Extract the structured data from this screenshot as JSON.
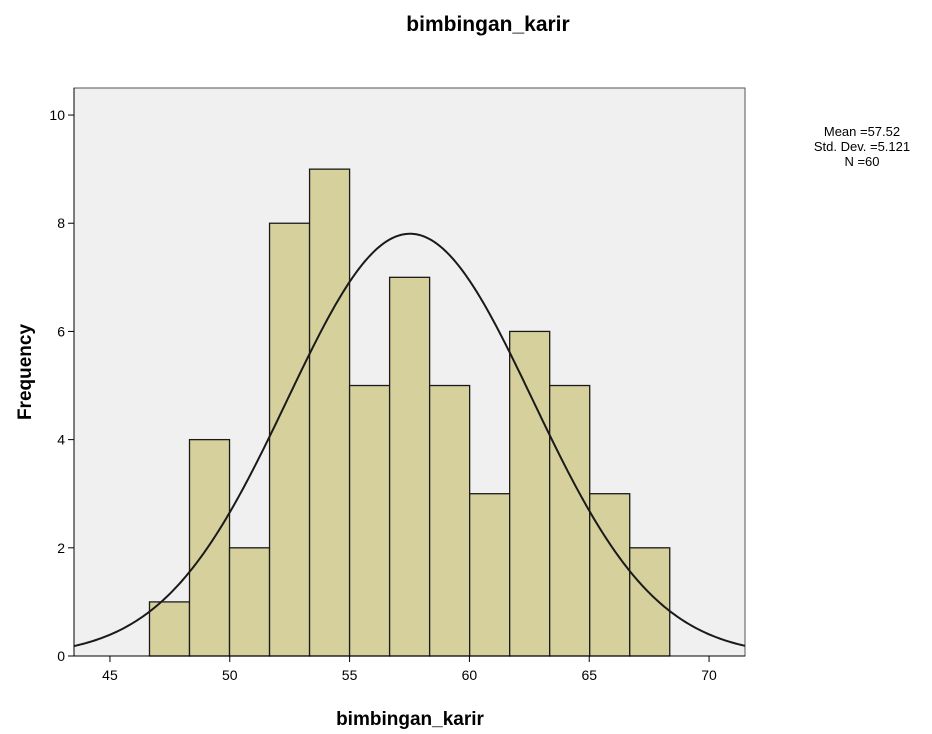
{
  "chart_data": {
    "type": "bar",
    "subtype": "histogram",
    "title": "bimbingan_karir",
    "xlabel": "bimbingan_karir",
    "ylabel": "Frequency",
    "xlim": [
      43.5,
      71.5
    ],
    "ylim": [
      0,
      10.5
    ],
    "x_ticks": [
      45,
      50,
      55,
      60,
      65,
      70
    ],
    "y_ticks": [
      0,
      2,
      4,
      6,
      8,
      10
    ],
    "bins": [
      {
        "from": 46.65,
        "to": 48.32,
        "count": 1
      },
      {
        "from": 48.32,
        "to": 49.99,
        "count": 4
      },
      {
        "from": 49.99,
        "to": 51.66,
        "count": 2
      },
      {
        "from": 51.66,
        "to": 53.33,
        "count": 8
      },
      {
        "from": 53.33,
        "to": 55.0,
        "count": 9
      },
      {
        "from": 55.0,
        "to": 56.67,
        "count": 5
      },
      {
        "from": 56.67,
        "to": 58.34,
        "count": 7
      },
      {
        "from": 58.34,
        "to": 60.01,
        "count": 5
      },
      {
        "from": 60.01,
        "to": 61.68,
        "count": 3
      },
      {
        "from": 61.68,
        "to": 63.35,
        "count": 6
      },
      {
        "from": 63.35,
        "to": 65.02,
        "count": 5
      },
      {
        "from": 65.02,
        "to": 66.69,
        "count": 3
      },
      {
        "from": 66.69,
        "to": 68.36,
        "count": 2
      }
    ],
    "normal_curve": {
      "mean": 57.52,
      "std_dev": 5.121,
      "n": 60,
      "bin_width": 1.67
    },
    "stats_text": [
      "Mean =57.52",
      "Std. Dev. =5.121",
      "N =60"
    ],
    "legend_placement": "top-right",
    "grid": false,
    "colors": {
      "bar_fill": "#d5d09c",
      "bar_stroke": "#1a1a1a",
      "plot_background": "#f0f0f0",
      "curve": "#1a1a1a"
    }
  }
}
